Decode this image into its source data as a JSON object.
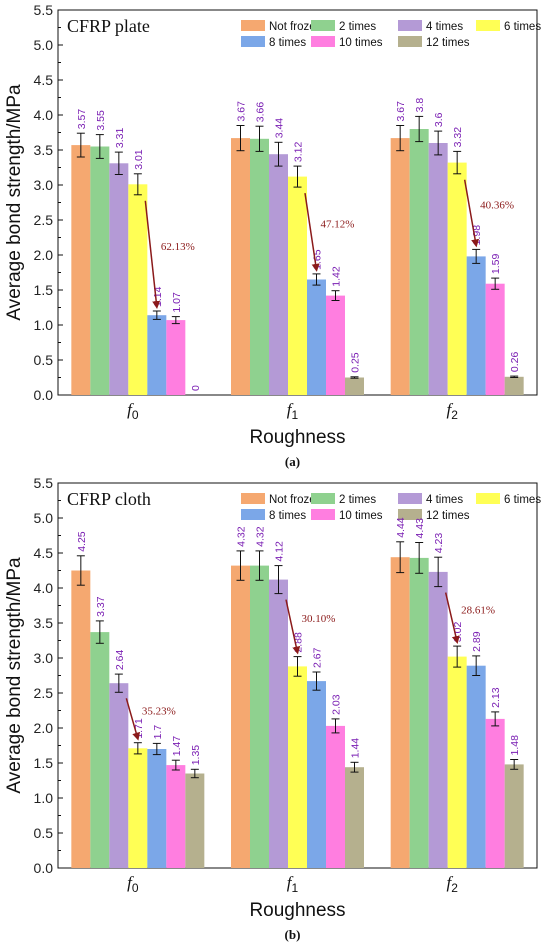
{
  "chart_data": [
    {
      "type": "bar",
      "panel_title": "CFRP plate",
      "caption": "(a)",
      "xlabel": "Roughness",
      "ylabel": "Average bond strength/MPa",
      "ylim": [
        0,
        5.5
      ],
      "yticks": [
        "0.0",
        "0.5",
        "1.0",
        "1.5",
        "2.0",
        "2.5",
        "3.0",
        "3.5",
        "4.0",
        "4.5",
        "5.0",
        "5.5"
      ],
      "categories": [
        {
          "base": "f",
          "sub": "0"
        },
        {
          "base": "f",
          "sub": "1"
        },
        {
          "base": "f",
          "sub": "2"
        }
      ],
      "series": [
        {
          "name": "Not frozen",
          "color": "#f5a870",
          "values": [
            3.57,
            3.67,
            3.67
          ],
          "labels": [
            "3.57",
            "3.67",
            "3.67"
          ],
          "errors": [
            0.17,
            0.18,
            0.18
          ]
        },
        {
          "name": "2 times",
          "color": "#8fd18f",
          "values": [
            3.55,
            3.66,
            3.8
          ],
          "labels": [
            "3.55",
            "3.66",
            "3.8"
          ],
          "errors": [
            0.17,
            0.18,
            0.18
          ]
        },
        {
          "name": "4 times",
          "color": "#b49ad6",
          "values": [
            3.31,
            3.44,
            3.6
          ],
          "labels": [
            "3.31",
            "3.44",
            "3.6"
          ],
          "errors": [
            0.16,
            0.17,
            0.17
          ]
        },
        {
          "name": "6 times",
          "color": "#ffff55",
          "values": [
            3.01,
            3.12,
            3.32
          ],
          "labels": [
            "3.01",
            "3.12",
            "3.32"
          ],
          "errors": [
            0.15,
            0.15,
            0.16
          ]
        },
        {
          "name": "8 times",
          "color": "#7ba7e8",
          "values": [
            1.14,
            1.65,
            1.98
          ],
          "labels": [
            "1.14",
            "1.65",
            "1.98"
          ],
          "errors": [
            0.06,
            0.08,
            0.1
          ]
        },
        {
          "name": "10 times",
          "color": "#ff7ee0",
          "values": [
            1.07,
            1.42,
            1.59
          ],
          "labels": [
            "1.07",
            "1.42",
            "1.59"
          ],
          "errors": [
            0.05,
            0.07,
            0.08
          ]
        },
        {
          "name": "12 times",
          "color": "#b5b08e",
          "values": [
            0,
            0.25,
            0.26
          ],
          "labels": [
            "0",
            "0.25",
            "0.26"
          ],
          "errors": [
            0,
            0.01,
            0.01
          ]
        }
      ],
      "annotations": [
        {
          "category": 0,
          "from_series": 3,
          "to_series": 4,
          "text": "62.13%"
        },
        {
          "category": 1,
          "from_series": 3,
          "to_series": 4,
          "text": "47.12%"
        },
        {
          "category": 2,
          "from_series": 3,
          "to_series": 4,
          "text": "40.36%"
        }
      ],
      "legend": "top-right",
      "grid": false
    },
    {
      "type": "bar",
      "panel_title": "CFRP cloth",
      "caption": "(b)",
      "xlabel": "Roughness",
      "ylabel": "Average bond strength/MPa",
      "ylim": [
        0,
        5.5
      ],
      "yticks": [
        "0.0",
        "0.5",
        "1.0",
        "1.5",
        "2.0",
        "2.5",
        "3.0",
        "3.5",
        "4.0",
        "4.5",
        "5.0",
        "5.5"
      ],
      "categories": [
        {
          "base": "f",
          "sub": "0"
        },
        {
          "base": "f",
          "sub": "1"
        },
        {
          "base": "f",
          "sub": "2"
        }
      ],
      "series": [
        {
          "name": "Not frozen",
          "color": "#f5a870",
          "values": [
            4.25,
            4.32,
            4.44
          ],
          "labels": [
            "4.25",
            "4.32",
            "4.44"
          ],
          "errors": [
            0.21,
            0.21,
            0.22
          ]
        },
        {
          "name": "2 times",
          "color": "#8fd18f",
          "values": [
            3.37,
            4.32,
            4.43
          ],
          "labels": [
            "3.37",
            "4.32",
            "4.43"
          ],
          "errors": [
            0.16,
            0.21,
            0.22
          ]
        },
        {
          "name": "4 times",
          "color": "#b49ad6",
          "values": [
            2.64,
            4.12,
            4.23
          ],
          "labels": [
            "2.64",
            "4.12",
            "4.23"
          ],
          "errors": [
            0.13,
            0.2,
            0.21
          ]
        },
        {
          "name": "6 times",
          "color": "#ffff55",
          "values": [
            1.71,
            2.88,
            3.02
          ],
          "labels": [
            "1.71",
            "2.88",
            "3.02"
          ],
          "errors": [
            0.08,
            0.14,
            0.15
          ]
        },
        {
          "name": "8 times",
          "color": "#7ba7e8",
          "values": [
            1.7,
            2.67,
            2.89
          ],
          "labels": [
            "1.7",
            "2.67",
            "2.89"
          ],
          "errors": [
            0.08,
            0.13,
            0.14
          ]
        },
        {
          "name": "10 times",
          "color": "#ff7ee0",
          "values": [
            1.47,
            2.03,
            2.13
          ],
          "labels": [
            "1.47",
            "2.03",
            "2.13"
          ],
          "errors": [
            0.07,
            0.1,
            0.1
          ]
        },
        {
          "name": "12 times",
          "color": "#b5b08e",
          "values": [
            1.35,
            1.44,
            1.48
          ],
          "labels": [
            "1.35",
            "1.44",
            "1.48"
          ],
          "errors": [
            0.06,
            0.07,
            0.07
          ]
        }
      ],
      "annotations": [
        {
          "category": 0,
          "from_series": 2,
          "to_series": 3,
          "text": "35.23%"
        },
        {
          "category": 1,
          "from_series": 2,
          "to_series": 3,
          "text": "30.10%"
        },
        {
          "category": 2,
          "from_series": 2,
          "to_series": 3,
          "text": "28.61%"
        }
      ],
      "legend": "top-right",
      "grid": false
    }
  ]
}
